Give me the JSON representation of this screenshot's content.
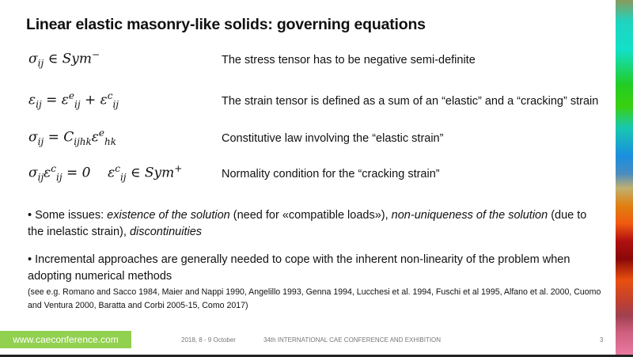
{
  "title": "Linear elastic masonry-like solids: governing equations",
  "equations": [
    {
      "description": "The stress tensor has to be negative semi-definite"
    },
    {
      "description": "The strain tensor is defined as a sum of an “elastic” and a “cracking” strain"
    },
    {
      "description": "Constitutive law involving the “elastic strain”"
    },
    {
      "description": "Normality condition for the “cracking strain”"
    }
  ],
  "bullets": {
    "b1_a": "• Some issues: ",
    "b1_b": "existence of the solution",
    "b1_c": " (need for «compatible loads»), ",
    "b1_d": "non-uniqueness of the solution",
    "b1_e": " (due to the inelastic strain), ",
    "b1_f": "discontinuities",
    "b2": "• Incremental approaches are generally needed to cope with the inherent non-linearity of the problem when adopting numerical methods",
    "refs": "(see e.g. Romano and Sacco 1984, Maier and Nappi 1990, Angelillo 1993, Genna 1994, Lucchesi et al. 1994, Fuschi et al 1995, Alfano et al. 2000, Cuomo and Ventura 2000,  Baratta and Corbi 2005-15, Como 2017)"
  },
  "footer": {
    "link": "www.caeconference.com",
    "date": "2018, 8 - 9 October",
    "event": "34th INTERNATIONAL CAE CONFERENCE AND EXHIBITION",
    "page": "3"
  },
  "colors": {
    "accent_green": "#92d050"
  }
}
